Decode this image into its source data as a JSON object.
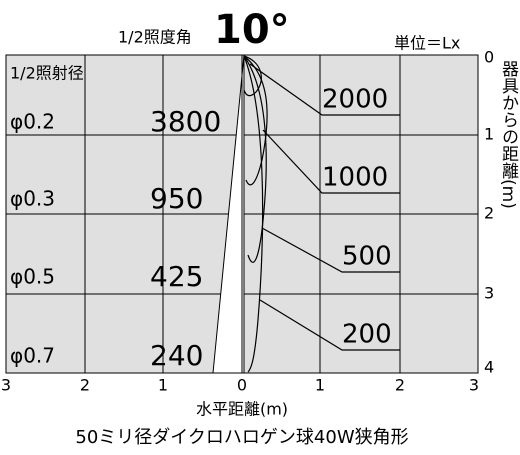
{
  "header": {
    "half_angle_label": "1/2照度角",
    "angle": "10°",
    "unit": "単位＝Lx"
  },
  "diameter_label": "1/2照射径",
  "rows": [
    {
      "diameter": "φ0.2",
      "illuminance": "3800"
    },
    {
      "diameter": "φ0.3",
      "illuminance": "950"
    },
    {
      "diameter": "φ0.5",
      "illuminance": "425"
    },
    {
      "diameter": "φ0.7",
      "illuminance": "240"
    }
  ],
  "x_axis": {
    "ticks": [
      "3",
      "2",
      "1",
      "0",
      "1",
      "2",
      "3"
    ],
    "label": "水平距離(m)"
  },
  "y_axis": {
    "ticks": [
      "0",
      "1",
      "2",
      "3",
      "4"
    ],
    "label": "器具からの距離(m)"
  },
  "contours": [
    "2000",
    "1000",
    "500",
    "200"
  ],
  "footer": "50ミリ径ダイクロハロゲン球40W狭角形"
}
